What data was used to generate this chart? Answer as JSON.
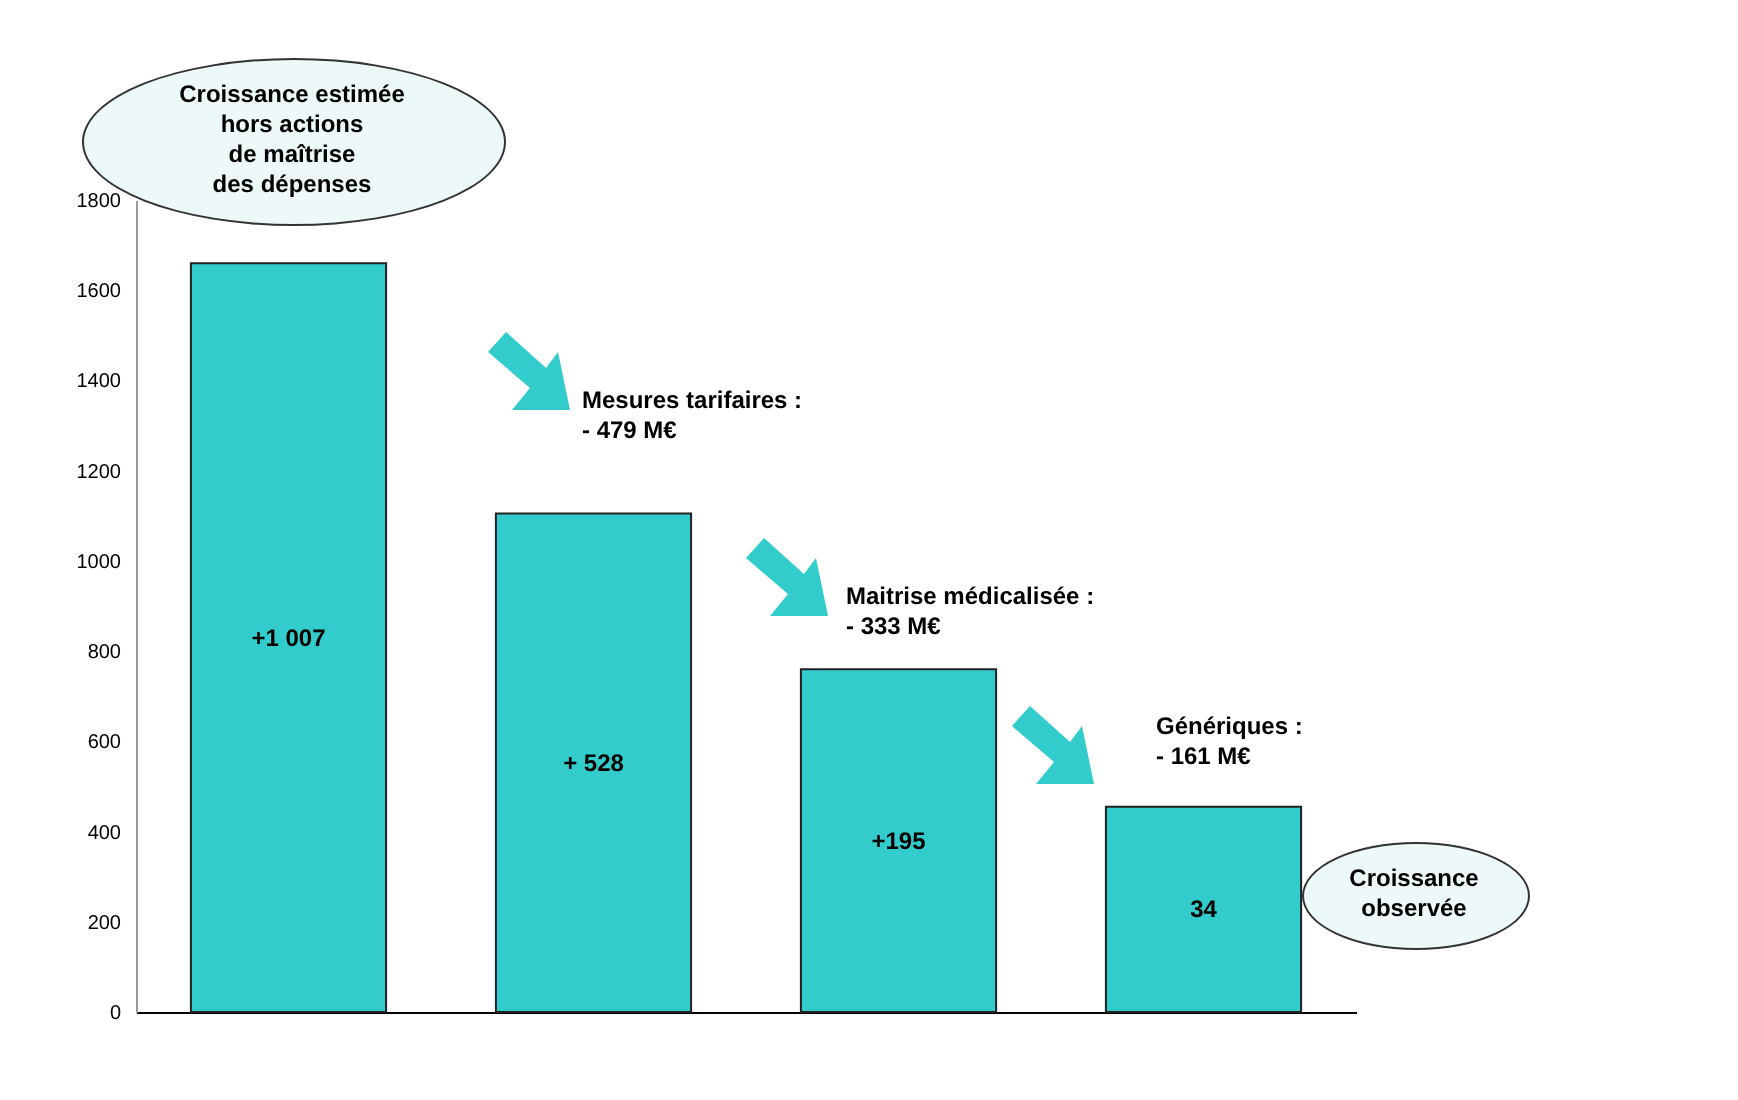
{
  "chart_data": {
    "type": "bar",
    "categories": [
      null,
      null,
      null,
      null
    ],
    "values": [
      1660,
      1105,
      760,
      455
    ],
    "color": "#33cccc",
    "ylim": [
      0,
      1800
    ],
    "yticks": [
      0,
      200,
      400,
      600,
      800,
      1000,
      1200,
      1400,
      1600,
      1800
    ],
    "grid": false,
    "annotations": [
      "Croissance estimée\nhors  actions\nde maîtrise\ndes dépenses",
      "Mesures tarifaires :\n- 479 M€",
      "Maitrise médicalisée :\n- 333 M€",
      "Génériques :\n- 161 M€",
      "Croissance\nobservée",
      "+1 007",
      "+ 528",
      "+195",
      "34"
    ]
  }
}
